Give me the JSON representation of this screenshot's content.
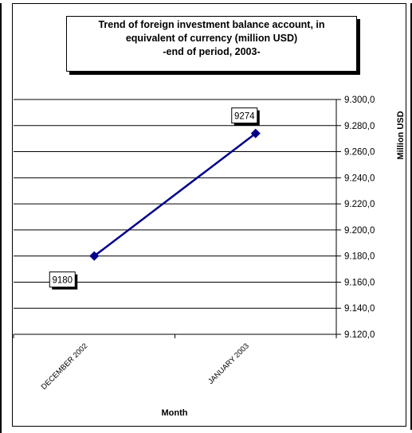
{
  "chart_data": {
    "type": "line",
    "title_lines": [
      "Trend of foreign investment balance account, in",
      "equivalent of currency (million USD)",
      "-end of period, 2003-"
    ],
    "categories": [
      "DECEMBER 2002",
      "JANUARY 2003"
    ],
    "series": [
      {
        "values": [
          9180,
          9274
        ],
        "color": "#00008B"
      }
    ],
    "data_labels": [
      "9180",
      "9274"
    ],
    "xlabel": "Month",
    "ylabel": "Million USD",
    "ylim": [
      9120,
      9300
    ],
    "yticks": [
      9300,
      9280,
      9260,
      9240,
      9220,
      9200,
      9180,
      9160,
      9140,
      9120
    ],
    "ytick_labels": [
      "9.300,0",
      "9.280,0",
      "9.260,0",
      "9.240,0",
      "9.220,0",
      "9.200,0",
      "9.180,0",
      "9.160,0",
      "9.140,0",
      "9.120,0"
    ],
    "grid": true,
    "y_axis_side": "right"
  }
}
